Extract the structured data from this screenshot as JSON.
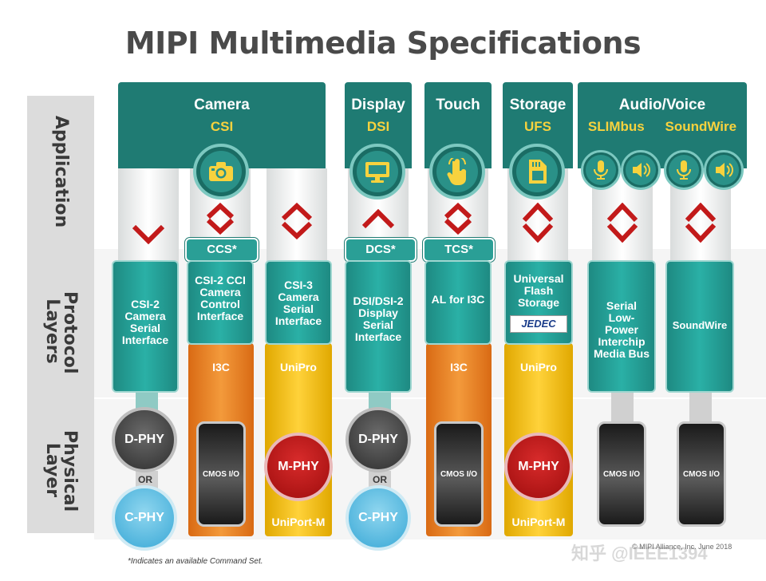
{
  "title": "MIPI Multimedia Specifications",
  "layers": {
    "application": "Application",
    "protocol": "Protocol Layers",
    "physical": "Physical Layer"
  },
  "columns": {
    "camera": {
      "title": "Camera",
      "spec": "CSI"
    },
    "display": {
      "title": "Display",
      "spec": "DSI"
    },
    "touch": {
      "title": "Touch",
      "spec": ""
    },
    "storage": {
      "title": "Storage",
      "spec": "UFS"
    },
    "audio": {
      "title": "Audio/Voice",
      "spec1": "SLIMbus",
      "spec2": "SoundWire"
    }
  },
  "command_sets": {
    "ccs": "CCS*",
    "dcs": "DCS*",
    "tcs": "TCS*"
  },
  "protocols": {
    "csi2": "CSI-2 Camera Serial Interface",
    "cci": "CSI-2 CCI Camera Control Interface",
    "csi3": "CSI-3 Camera Serial Interface",
    "dsi": "DSI/DSI-2 Display Serial Interface",
    "al_i3c": "AL for I3C",
    "ufs": "Universal Flash Storage",
    "jedec": "JEDEC",
    "slimbus": "Serial Low-Power Interchip Media Bus",
    "soundwire": "SoundWire"
  },
  "bars": {
    "i3c_1": "I3C",
    "unipro_1": "UniPro",
    "i3c_2": "I3C",
    "unipro_2": "UniPro",
    "uniport_1": "UniPort-M",
    "uniport_2": "UniPort-M"
  },
  "phy": {
    "dphy": "D-PHY",
    "cphy": "C-PHY",
    "mphy": "M-PHY",
    "or": "OR",
    "cmos": "CMOS I/O"
  },
  "footnote": "*Indicates an available Command Set.",
  "copyright": "© MIPI Alliance, Inc. June 2018",
  "watermark": "知乎 @IEEE1394",
  "colors": {
    "header_teal": "#1f7b73",
    "protocol_teal": "#2ab0a6",
    "spec_yellow": "#f7d23e",
    "i3c_orange": "#f39a3b",
    "unipro_yellow": "#ffd23a",
    "mphy_red": "#c21a1a",
    "cphy_blue": "#5bbbe0",
    "chevron_red": "#c21a1a"
  }
}
